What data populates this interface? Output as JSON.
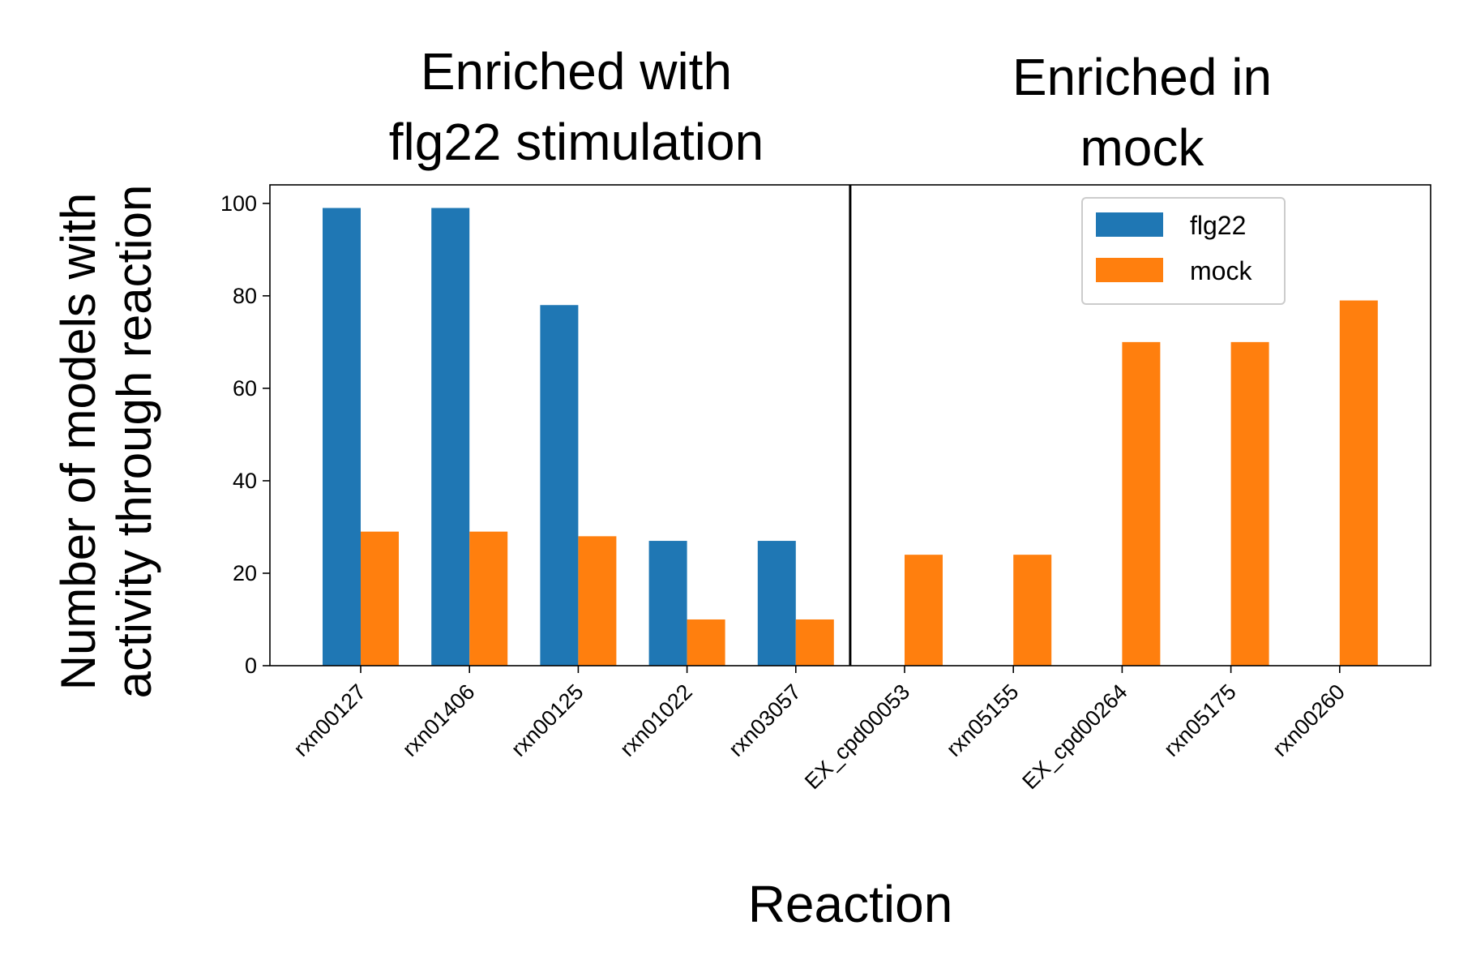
{
  "chart_data": {
    "type": "bar",
    "categories": [
      "rxn00127",
      "rxn01406",
      "rxn00125",
      "rxn01022",
      "rxn03057",
      "EX_cpd00053",
      "rxn05155",
      "EX_cpd00264",
      "rxn05175",
      "rxn00260"
    ],
    "series": [
      {
        "name": "flg22",
        "color": "#1f77b4",
        "values": [
          99,
          99,
          78,
          27,
          27,
          0,
          0,
          0,
          0,
          0
        ]
      },
      {
        "name": "mock",
        "color": "#ff7f0e",
        "values": [
          29,
          29,
          28,
          10,
          10,
          24,
          24,
          70,
          70,
          79
        ]
      }
    ],
    "group_titles": [
      {
        "lines": [
          "Enriched with",
          "flg22 stimulation"
        ]
      },
      {
        "lines": [
          "Enriched in",
          "mock"
        ]
      }
    ],
    "group_divider_after_index": 4,
    "xlabel": "Reaction",
    "ylabel_lines": [
      "Number of models with",
      "activity through reaction"
    ],
    "ylim": [
      0,
      104
    ],
    "yticks": [
      0,
      20,
      40,
      60,
      80,
      100
    ],
    "grid": false,
    "legend_position": "upper-right"
  }
}
